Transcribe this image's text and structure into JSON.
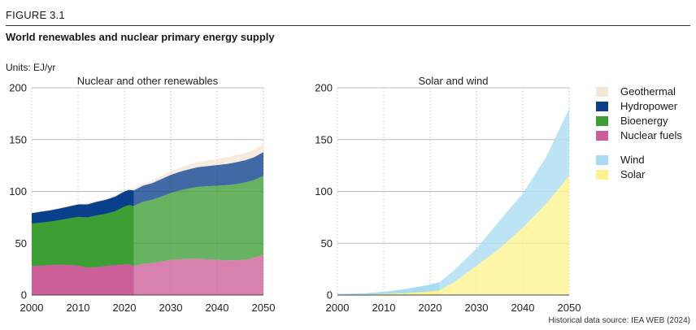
{
  "figure_label": "FIGURE 3.1",
  "title": "World renewables and nuclear primary energy supply",
  "units_label": "Units: EJ/yr",
  "source": "Historical data source: IEA WEB (2024)",
  "colors": {
    "geothermal": "#f2e6d6",
    "hydropower": "#0a3f8c",
    "bioenergy": "#3c9e35",
    "nuclear": "#cc5e99",
    "wind": "#a9dcf1",
    "solar": "#fdf28e"
  },
  "legend": [
    {
      "name": "Geothermal",
      "color": "#f2e6d6"
    },
    {
      "name": "Hydropower",
      "color": "#0a3f8c"
    },
    {
      "name": "Bioenergy",
      "color": "#3c9e35"
    },
    {
      "name": "Nuclear fuels",
      "color": "#cc5e99"
    },
    {
      "name": "Wind",
      "color": "#a9dcf1"
    },
    {
      "name": "Solar",
      "color": "#fdf28e"
    }
  ],
  "chart_data": [
    {
      "type": "area",
      "title": "Nuclear and other renewables",
      "stacked": true,
      "historical_until": 2022,
      "x": [
        2000,
        2002,
        2004,
        2006,
        2008,
        2010,
        2012,
        2014,
        2016,
        2018,
        2020,
        2021,
        2022,
        2024,
        2026,
        2028,
        2030,
        2032,
        2034,
        2036,
        2038,
        2040,
        2042,
        2044,
        2046,
        2048,
        2050
      ],
      "xlim": [
        2000,
        2050
      ],
      "ylim": [
        0,
        200
      ],
      "xticks": [
        2000,
        2010,
        2020,
        2030,
        2040,
        2050
      ],
      "yticks": [
        0,
        50,
        100,
        150,
        200
      ],
      "series": [
        {
          "name": "Nuclear fuels",
          "values": [
            28,
            28.5,
            29,
            29.5,
            29,
            28.5,
            26.5,
            27,
            28,
            29,
            29.5,
            30,
            28,
            30,
            31,
            32.5,
            34,
            34.5,
            35,
            35,
            34.5,
            34,
            33.5,
            33.5,
            34,
            36,
            39
          ]
        },
        {
          "name": "Bioenergy",
          "values": [
            41,
            41.5,
            42,
            43,
            45,
            47,
            48.5,
            50,
            50.5,
            52,
            56,
            57,
            58,
            60,
            61,
            62.5,
            64.5,
            66.5,
            68,
            69.5,
            70.5,
            71.5,
            72.5,
            73.5,
            74.5,
            75,
            76
          ]
        },
        {
          "name": "Hydropower",
          "values": [
            10,
            10.5,
            10.8,
            11,
            11.5,
            12,
            12.5,
            13,
            13.5,
            14,
            14.5,
            14.5,
            15,
            15.5,
            16,
            17,
            17.5,
            18,
            18.5,
            19,
            19.5,
            20,
            20.5,
            21,
            21.5,
            22,
            23
          ]
        },
        {
          "name": "Geothermal",
          "values": [
            0.5,
            0.5,
            0.5,
            0.6,
            0.7,
            0.8,
            0.9,
            1,
            1,
            1.2,
            1.5,
            1.5,
            1.5,
            2,
            2.5,
            3,
            3.5,
            4,
            4.5,
            5,
            5.5,
            6,
            6.5,
            7,
            7,
            7.5,
            8
          ]
        }
      ]
    },
    {
      "type": "area",
      "title": "Solar and wind",
      "stacked": true,
      "historical_until": 2022,
      "x": [
        2000,
        2005,
        2010,
        2015,
        2020,
        2022,
        2025,
        2030,
        2035,
        2040,
        2045,
        2050
      ],
      "xlim": [
        2000,
        2050
      ],
      "ylim": [
        0,
        200
      ],
      "xticks": [
        2000,
        2010,
        2020,
        2030,
        2040,
        2050
      ],
      "yticks": [
        0,
        50,
        100,
        150,
        200
      ],
      "series": [
        {
          "name": "Solar",
          "values": [
            0.5,
            0.5,
            1,
            2,
            3.5,
            4.5,
            12,
            28,
            45,
            65,
            88,
            115
          ]
        },
        {
          "name": "Wind",
          "values": [
            0.5,
            1,
            2,
            4,
            6.5,
            8,
            11,
            17,
            27,
            33,
            45,
            65
          ]
        }
      ]
    }
  ]
}
